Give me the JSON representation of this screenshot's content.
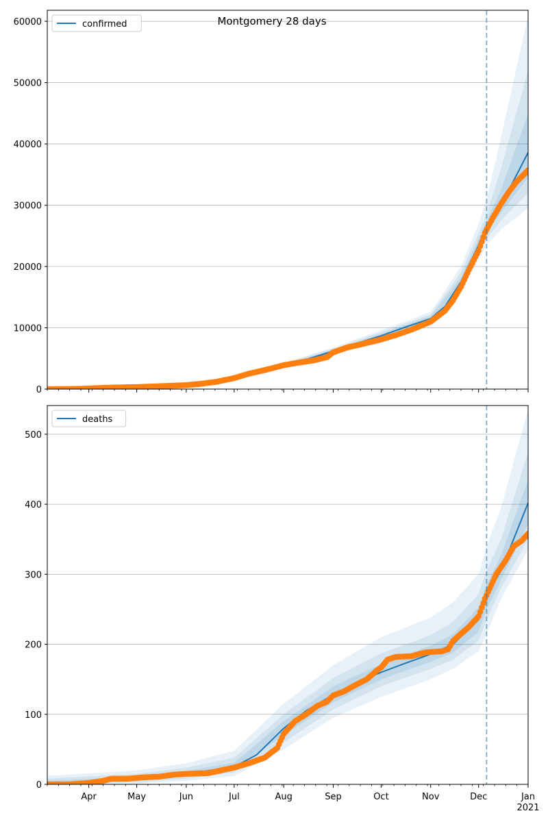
{
  "figure": {
    "suptitle": "Montgomery 28 days"
  },
  "chart_data": [
    {
      "type": "line",
      "panel": "top",
      "title": "",
      "xlabel": "",
      "ylabel": "",
      "legend": {
        "label": "confirmed",
        "placement": "top-left"
      },
      "grid": "horizontal",
      "x_tick_labels": [
        "Apr",
        "May",
        "Jun",
        "Jul",
        "Aug",
        "Sep",
        "Oct",
        "Nov",
        "Dec",
        "Jan"
      ],
      "x_tick_sublabel": "2021",
      "y_ticks": [
        0,
        10000,
        20000,
        30000,
        40000,
        50000,
        60000
      ],
      "ylim": [
        0,
        61800
      ],
      "xlim": [
        "2020-03-06",
        "2021-01-01"
      ],
      "forecast_start": "2020-12-06",
      "colors": {
        "model": "#1f77b4",
        "observed": "#ff7f0e",
        "band": "#1f77b4",
        "forecast_line": "#1f77b4"
      },
      "model_line": {
        "x": [
          "2020-03-06",
          "2020-04-01",
          "2020-05-01",
          "2020-06-01",
          "2020-06-15",
          "2020-07-01",
          "2020-07-15",
          "2020-08-01",
          "2020-08-15",
          "2020-09-01",
          "2020-09-15",
          "2020-10-01",
          "2020-10-15",
          "2020-11-01",
          "2020-11-10",
          "2020-11-20",
          "2020-12-01",
          "2020-12-06",
          "2020-12-15",
          "2021-01-01"
        ],
        "y": [
          0,
          50,
          250,
          600,
          900,
          1700,
          2700,
          3900,
          4800,
          6200,
          7400,
          8700,
          10000,
          11500,
          13500,
          17500,
          23500,
          26500,
          30000,
          38600
        ]
      },
      "bands": {
        "x": [
          "2020-03-06",
          "2020-05-01",
          "2020-07-01",
          "2020-08-01",
          "2020-09-01",
          "2020-10-01",
          "2020-11-01",
          "2020-11-20",
          "2020-12-01",
          "2020-12-06",
          "2020-12-15",
          "2021-01-01"
        ],
        "outer_lo": [
          0,
          200,
          1400,
          3500,
          5600,
          8000,
          10500,
          16000,
          21000,
          23500,
          26000,
          29500
        ],
        "outer_hi": [
          0,
          300,
          2000,
          4300,
          6800,
          9600,
          12600,
          20000,
          27000,
          31000,
          41000,
          61000
        ],
        "mid_lo": [
          0,
          220,
          1500,
          3650,
          5800,
          8250,
          10850,
          16500,
          22000,
          24500,
          27500,
          32000
        ],
        "mid_hi": [
          0,
          280,
          1900,
          4150,
          6600,
          9300,
          12200,
          19000,
          25500,
          28500,
          36000,
          52000
        ],
        "inner_lo": [
          0,
          235,
          1600,
          3750,
          5950,
          8450,
          11100,
          17000,
          22700,
          25500,
          28800,
          34500
        ],
        "inner_hi": [
          0,
          265,
          1800,
          4050,
          6450,
          9000,
          11900,
          18200,
          24500,
          27400,
          32500,
          45000
        ]
      },
      "observed": {
        "x": [
          "2020-03-06",
          "2020-03-15",
          "2020-03-25",
          "2020-04-01",
          "2020-04-10",
          "2020-04-20",
          "2020-05-01",
          "2020-05-10",
          "2020-05-20",
          "2020-06-01",
          "2020-06-10",
          "2020-06-20",
          "2020-07-01",
          "2020-07-10",
          "2020-07-20",
          "2020-08-01",
          "2020-08-10",
          "2020-08-20",
          "2020-08-28",
          "2020-09-01",
          "2020-09-10",
          "2020-09-20",
          "2020-10-01",
          "2020-10-10",
          "2020-10-20",
          "2020-11-01",
          "2020-11-10",
          "2020-11-15",
          "2020-11-20",
          "2020-11-25",
          "2020-12-01",
          "2020-12-05",
          "2020-12-10",
          "2020-12-15",
          "2020-12-20",
          "2020-12-25",
          "2021-01-01"
        ],
        "y": [
          0,
          10,
          40,
          100,
          200,
          280,
          330,
          420,
          520,
          650,
          850,
          1200,
          1800,
          2500,
          3100,
          3900,
          4300,
          4700,
          5200,
          6000,
          6800,
          7400,
          8100,
          8800,
          9700,
          11000,
          12800,
          14500,
          16700,
          19500,
          22600,
          25500,
          28000,
          30200,
          32200,
          33900,
          35700
        ]
      }
    },
    {
      "type": "line",
      "panel": "bottom",
      "title": "",
      "xlabel": "",
      "ylabel": "",
      "legend": {
        "label": "deaths",
        "placement": "top-left"
      },
      "grid": "horizontal",
      "x_tick_labels": [
        "Apr",
        "May",
        "Jun",
        "Jul",
        "Aug",
        "Sep",
        "Oct",
        "Nov",
        "Dec",
        "Jan"
      ],
      "x_tick_sublabel": "2021",
      "y_ticks": [
        0,
        100,
        200,
        300,
        400,
        500
      ],
      "ylim": [
        0,
        541
      ],
      "xlim": [
        "2020-03-06",
        "2021-01-01"
      ],
      "forecast_start": "2020-12-06",
      "colors": {
        "model": "#1f77b4",
        "observed": "#ff7f0e",
        "band": "#1f77b4",
        "forecast_line": "#1f77b4"
      },
      "model_line": {
        "x": [
          "2020-03-06",
          "2020-04-01",
          "2020-05-01",
          "2020-06-01",
          "2020-07-01",
          "2020-07-15",
          "2020-08-01",
          "2020-08-15",
          "2020-09-01",
          "2020-09-15",
          "2020-10-01",
          "2020-10-15",
          "2020-11-01",
          "2020-11-15",
          "2020-12-01",
          "2020-12-06",
          "2020-12-15",
          "2021-01-01"
        ],
        "y": [
          0,
          2,
          8,
          15,
          25,
          42,
          80,
          105,
          128,
          145,
          160,
          172,
          186,
          200,
          235,
          270,
          305,
          402
        ]
      },
      "bands": {
        "x": [
          "2020-03-06",
          "2020-05-01",
          "2020-06-01",
          "2020-07-01",
          "2020-08-01",
          "2020-09-01",
          "2020-10-01",
          "2020-11-01",
          "2020-11-15",
          "2020-12-01",
          "2020-12-06",
          "2020-12-15",
          "2021-01-01"
        ],
        "outer_lo": [
          0,
          1,
          5,
          12,
          50,
          95,
          125,
          150,
          165,
          190,
          215,
          265,
          335
        ],
        "outer_hi": [
          12,
          20,
          30,
          48,
          115,
          170,
          210,
          238,
          260,
          300,
          340,
          395,
          535
        ],
        "mid_lo": [
          0,
          3,
          8,
          17,
          60,
          107,
          140,
          165,
          178,
          205,
          235,
          280,
          350
        ],
        "mid_hi": [
          8,
          15,
          24,
          38,
          100,
          152,
          187,
          213,
          232,
          272,
          305,
          350,
          475
        ],
        "inner_lo": [
          0,
          5,
          11,
          21,
          70,
          117,
          150,
          175,
          188,
          218,
          250,
          292,
          372
        ],
        "inner_hi": [
          5,
          11,
          19,
          31,
          90,
          140,
          172,
          198,
          214,
          253,
          285,
          327,
          435
        ]
      },
      "observed": {
        "x": [
          "2020-03-06",
          "2020-03-20",
          "2020-04-01",
          "2020-04-10",
          "2020-04-15",
          "2020-04-25",
          "2020-05-05",
          "2020-05-15",
          "2020-05-25",
          "2020-06-01",
          "2020-06-15",
          "2020-07-01",
          "2020-07-10",
          "2020-07-20",
          "2020-07-28",
          "2020-08-01",
          "2020-08-08",
          "2020-08-15",
          "2020-08-22",
          "2020-08-28",
          "2020-09-01",
          "2020-09-08",
          "2020-09-15",
          "2020-09-22",
          "2020-09-28",
          "2020-10-01",
          "2020-10-05",
          "2020-10-10",
          "2020-10-20",
          "2020-10-28",
          "2020-11-01",
          "2020-11-08",
          "2020-11-12",
          "2020-11-15",
          "2020-11-20",
          "2020-11-25",
          "2020-12-01",
          "2020-12-05",
          "2020-12-08",
          "2020-12-12",
          "2020-12-18",
          "2020-12-23",
          "2020-12-28",
          "2021-01-01"
        ],
        "y": [
          0,
          0,
          2,
          5,
          8,
          8,
          10,
          11,
          14,
          15,
          16,
          24,
          30,
          38,
          52,
          72,
          90,
          100,
          112,
          118,
          127,
          133,
          142,
          150,
          162,
          167,
          178,
          182,
          183,
          188,
          189,
          190,
          193,
          205,
          215,
          225,
          240,
          265,
          280,
          300,
          320,
          340,
          348,
          358
        ]
      }
    }
  ]
}
